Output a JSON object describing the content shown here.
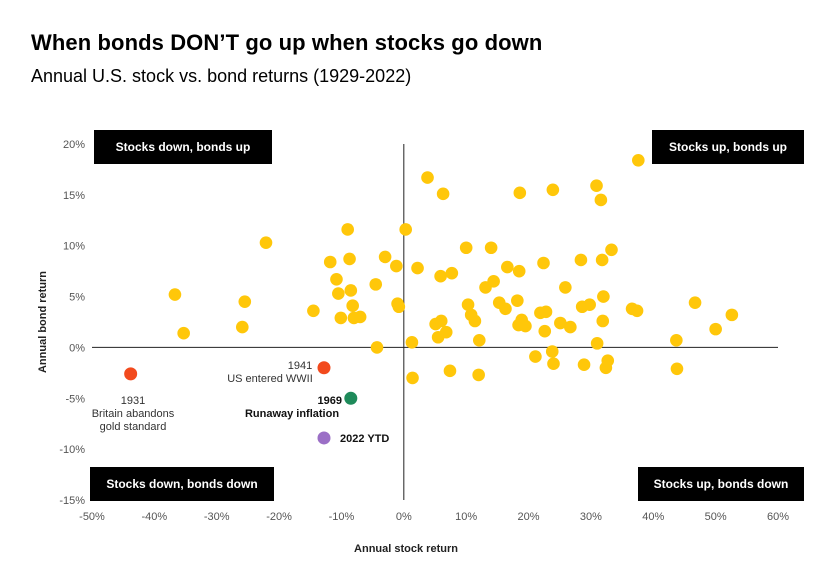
{
  "title": "When bonds DON’T go up when stocks go down",
  "subtitle": "Annual U.S. stock vs. bond returns (1929-2022)",
  "colors": {
    "points": "#FFC70A",
    "highlight_1931": "#F24A1D",
    "highlight_1941": "#F24A1D",
    "highlight_1969": "#1E8A5A",
    "highlight_2022": "#9B6FC6",
    "quadrant_box": "#000000"
  },
  "quadrants": {
    "top_left": "Stocks down, bonds up",
    "top_right": "Stocks up, bonds up",
    "bottom_left": "Stocks down, bonds down",
    "bottom_right": "Stocks up, bonds down"
  },
  "chart_data": {
    "type": "scatter",
    "title": "When bonds DON’T go up when stocks go down",
    "xlabel": "Annual stock return",
    "ylabel": "Annual bond return",
    "xlim": [
      -50,
      60
    ],
    "ylim": [
      -15,
      20
    ],
    "x_ticks": [
      "-50%",
      "-40%",
      "-30%",
      "-20%",
      "-10%",
      "0%",
      "10%",
      "20%",
      "30%",
      "40%",
      "50%",
      "60%"
    ],
    "y_ticks": [
      "20%",
      "15%",
      "10%",
      "5%",
      "0%",
      "-5%",
      "-10%",
      "-15%"
    ],
    "grid": false,
    "points": [
      [
        -36.7,
        5.2
      ],
      [
        -35.3,
        1.4
      ],
      [
        -25.9,
        2.0
      ],
      [
        -25.5,
        4.5
      ],
      [
        -22.1,
        10.3
      ],
      [
        -14.5,
        3.6
      ],
      [
        -11.8,
        8.4
      ],
      [
        -10.5,
        5.3
      ],
      [
        -10.8,
        6.7
      ],
      [
        -10.1,
        2.9
      ],
      [
        -9.0,
        11.6
      ],
      [
        -8.5,
        5.6
      ],
      [
        -8.7,
        8.7
      ],
      [
        -8.2,
        4.1
      ],
      [
        -8.0,
        2.9
      ],
      [
        -7.0,
        3.0
      ],
      [
        -4.5,
        6.2
      ],
      [
        -4.3,
        0.0
      ],
      [
        -3.0,
        8.9
      ],
      [
        -1.2,
        8.0
      ],
      [
        -1.0,
        4.3
      ],
      [
        -0.8,
        4.0
      ],
      [
        0.3,
        11.6
      ],
      [
        1.3,
        0.5
      ],
      [
        1.4,
        -3.0
      ],
      [
        2.2,
        7.8
      ],
      [
        3.8,
        16.7
      ],
      [
        5.1,
        2.3
      ],
      [
        5.5,
        1.0
      ],
      [
        5.9,
        7.0
      ],
      [
        6.0,
        2.6
      ],
      [
        6.3,
        15.1
      ],
      [
        6.8,
        1.5
      ],
      [
        7.4,
        -2.3
      ],
      [
        7.7,
        7.3
      ],
      [
        10.0,
        9.8
      ],
      [
        10.3,
        4.2
      ],
      [
        10.8,
        3.2
      ],
      [
        11.4,
        2.6
      ],
      [
        12.0,
        -2.7
      ],
      [
        12.1,
        0.7
      ],
      [
        13.1,
        5.9
      ],
      [
        14.0,
        9.8
      ],
      [
        14.4,
        6.5
      ],
      [
        15.3,
        4.4
      ],
      [
        16.3,
        3.8
      ],
      [
        16.6,
        7.9
      ],
      [
        18.2,
        4.6
      ],
      [
        18.4,
        2.2
      ],
      [
        18.5,
        7.5
      ],
      [
        18.6,
        15.2
      ],
      [
        18.9,
        2.7
      ],
      [
        19.5,
        2.1
      ],
      [
        21.1,
        -0.9
      ],
      [
        21.9,
        3.4
      ],
      [
        22.4,
        8.3
      ],
      [
        22.6,
        1.6
      ],
      [
        22.8,
        3.5
      ],
      [
        23.8,
        -0.4
      ],
      [
        23.9,
        15.5
      ],
      [
        24.0,
        -1.6
      ],
      [
        25.1,
        2.4
      ],
      [
        25.9,
        5.9
      ],
      [
        26.7,
        2.0
      ],
      [
        28.4,
        8.6
      ],
      [
        28.6,
        4.0
      ],
      [
        28.9,
        -1.7
      ],
      [
        29.8,
        4.2
      ],
      [
        30.9,
        15.9
      ],
      [
        31.0,
        0.4
      ],
      [
        31.6,
        14.5
      ],
      [
        31.8,
        8.6
      ],
      [
        31.9,
        2.6
      ],
      [
        32.0,
        5.0
      ],
      [
        32.4,
        -2.0
      ],
      [
        32.7,
        -1.3
      ],
      [
        33.3,
        9.6
      ],
      [
        36.6,
        3.8
      ],
      [
        37.4,
        3.6
      ],
      [
        37.6,
        18.4
      ],
      [
        43.7,
        0.7
      ],
      [
        43.8,
        -2.1
      ],
      [
        46.7,
        4.4
      ],
      [
        50.0,
        1.8
      ],
      [
        52.6,
        3.2
      ]
    ],
    "highlights": [
      {
        "label": "1931",
        "note": "Britain abandons gold standard",
        "x": -43.8,
        "y": -2.6
      },
      {
        "label": "1941",
        "note": "US entered WWII",
        "x": -12.8,
        "y": -2.0
      },
      {
        "label": "1969",
        "note": "Runaway inflation",
        "x": -8.5,
        "y": -5.0
      },
      {
        "label": "2022 YTD",
        "note": "",
        "x": -12.8,
        "y": -8.9
      }
    ]
  }
}
